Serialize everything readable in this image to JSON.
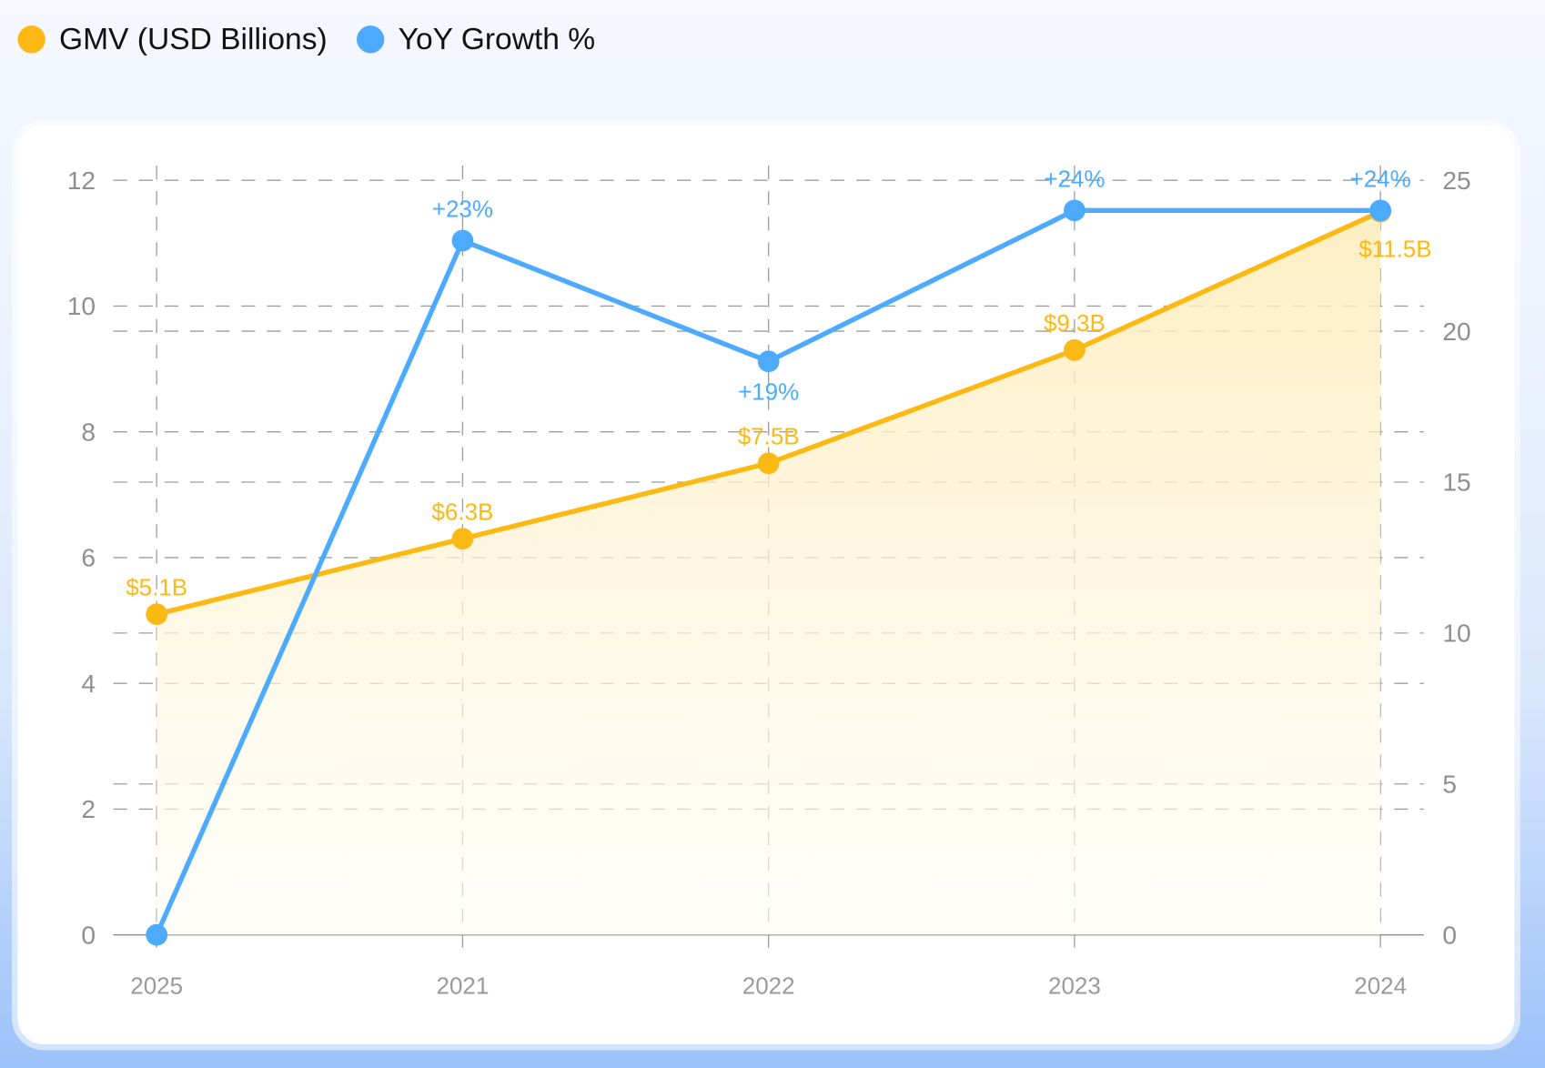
{
  "chart_data": {
    "type": "line",
    "categories": [
      "2025",
      "2021",
      "2022",
      "2023",
      "2024"
    ],
    "legend_position": "top-left",
    "grid": true,
    "series": [
      {
        "name": "GMV (USD Billions)",
        "axis": "left",
        "values": [
          5.1,
          6.3,
          7.5,
          9.3,
          11.5
        ],
        "labels": [
          "$5.1B",
          "$6.3B",
          "$7.5B",
          "$9.3B",
          "$11.5B"
        ],
        "color": "#FDB913",
        "area": true
      },
      {
        "name": "YoY Growth %",
        "axis": "right",
        "values": [
          0,
          23,
          19,
          24,
          24
        ],
        "labels": [
          "",
          "+23%",
          "+19%",
          "+24%",
          "+24%"
        ],
        "color": "#4DABFF"
      }
    ],
    "y_left": {
      "range": [
        0,
        12
      ],
      "ticks": [
        "0",
        "2",
        "4",
        "6",
        "8",
        "10",
        "12"
      ]
    },
    "y_right": {
      "range": [
        0,
        25
      ],
      "ticks": [
        "0",
        "5",
        "10",
        "15",
        "20",
        "25"
      ]
    }
  }
}
